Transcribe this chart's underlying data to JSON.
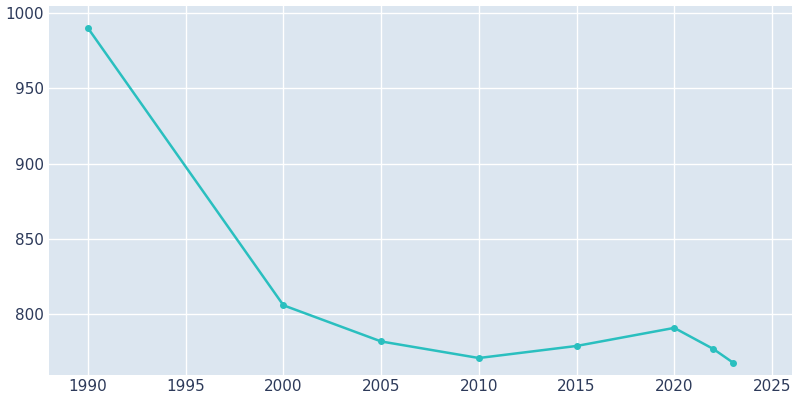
{
  "years": [
    1990,
    2000,
    2005,
    2010,
    2015,
    2020,
    2022,
    2023
  ],
  "population": [
    990,
    806,
    782,
    771,
    779,
    791,
    777,
    768
  ],
  "line_color": "#2abfbf",
  "marker": "o",
  "marker_size": 4,
  "axes_facecolor": "#dce6f0",
  "figure_facecolor": "#ffffff",
  "grid_color": "#ffffff",
  "tick_color": "#2d3a5a",
  "ylim": [
    760,
    1005
  ],
  "xlim": [
    1988,
    2026
  ],
  "yticks": [
    800,
    850,
    900,
    950,
    1000
  ],
  "xticks": [
    1990,
    1995,
    2000,
    2005,
    2010,
    2015,
    2020,
    2025
  ]
}
